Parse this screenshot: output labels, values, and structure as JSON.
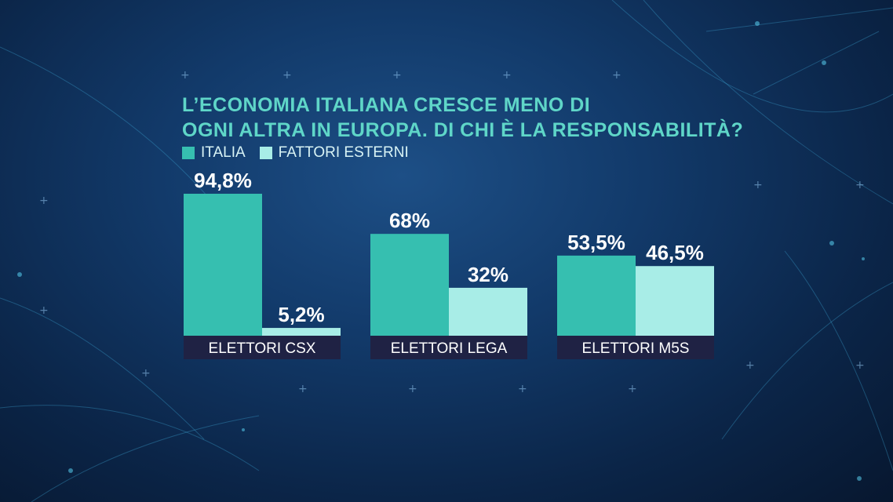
{
  "chart_data": {
    "type": "bar",
    "title_lines": [
      "L’ECONOMIA ITALIANA CRESCE MENO DI",
      "OGNI ALTRA IN EUROPA. DI CHI È LA RESPONSABILITÀ?"
    ],
    "categories": [
      "ELETTORI CSX",
      "ELETTORI LEGA",
      "ELETTORI M5S"
    ],
    "series": [
      {
        "name": "ITALIA",
        "values": [
          94.8,
          68,
          53.5
        ],
        "labels": [
          "94,8%",
          "68%",
          "53,5%"
        ]
      },
      {
        "name": "FATTORI ESTERNI",
        "values": [
          5.2,
          32,
          46.5
        ],
        "labels": [
          "5,2%",
          "32%",
          "46,5%"
        ]
      }
    ],
    "ylim": [
      0,
      100
    ],
    "legend_position": "top-left",
    "grid": false
  },
  "colors": {
    "italia": "#36bfb0",
    "fattori_esterni": "#a8ede7",
    "category_band": "#1f2244",
    "title": "#5fd6c8"
  }
}
